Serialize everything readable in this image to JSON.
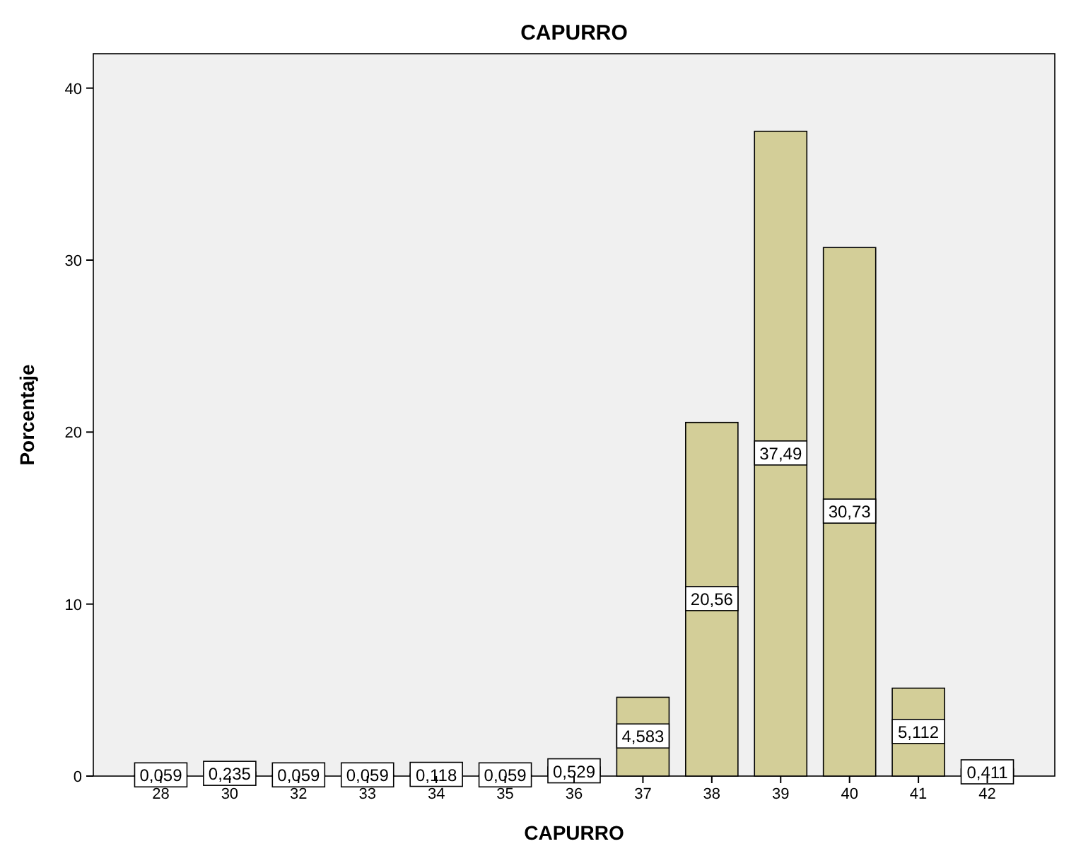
{
  "chart_data": {
    "type": "bar",
    "title": "CAPURRO",
    "xlabel": "CAPURRO",
    "ylabel": "Porcentaje",
    "categories": [
      "28",
      "30",
      "32",
      "33",
      "34",
      "35",
      "36",
      "37",
      "38",
      "39",
      "40",
      "41",
      "42"
    ],
    "values": [
      0.059,
      0.235,
      0.059,
      0.059,
      0.118,
      0.059,
      0.529,
      4.583,
      20.56,
      37.49,
      30.73,
      5.112,
      0.411
    ],
    "value_labels": [
      "0,059",
      "0,235",
      "0,059",
      "0,059",
      "0,118",
      "0,059",
      "0,529",
      "4,583",
      "20,56",
      "37,49",
      "30,73",
      "5,112",
      "0,411"
    ],
    "color": "#d3ce98",
    "ylim": [
      0,
      42
    ],
    "yticks": [
      0,
      10,
      20,
      30,
      40
    ],
    "grid": false
  }
}
